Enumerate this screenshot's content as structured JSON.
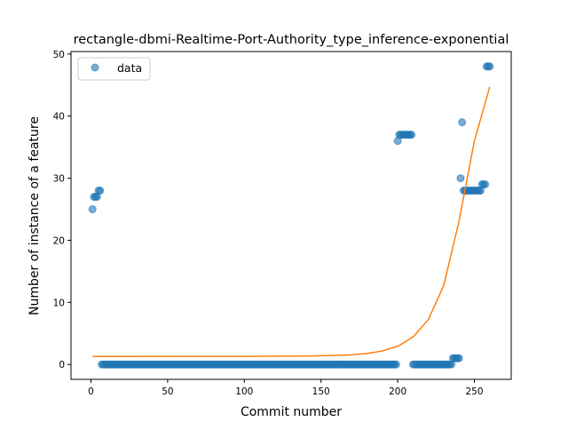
{
  "chart_data": {
    "type": "scatter",
    "title": "rectangle-dbmi-Realtime-Port-Authority_type_inference-exponential",
    "xlabel": "Commit number",
    "ylabel": "Number of instance of a feature",
    "xlim": [
      -13,
      274
    ],
    "ylim": [
      -2.4,
      50.4
    ],
    "xticks": [
      0,
      50,
      100,
      150,
      200,
      250
    ],
    "yticks": [
      0,
      10,
      20,
      30,
      40,
      50
    ],
    "grid": false,
    "legend": {
      "placement": "upper-left",
      "entries": [
        "data"
      ]
    },
    "colors": {
      "data": "#1f77b4",
      "fit": "#ff7f0e"
    },
    "series": [
      {
        "name": "data",
        "kind": "points",
        "points": [
          [
            1,
            25
          ],
          [
            2,
            27
          ],
          [
            3,
            27
          ],
          [
            4,
            27
          ],
          [
            5,
            28
          ],
          [
            6,
            28
          ],
          [
            7,
            0
          ],
          [
            8,
            0
          ],
          [
            9,
            0
          ],
          [
            10,
            0
          ],
          [
            11,
            0
          ],
          [
            12,
            0
          ],
          [
            13,
            0
          ],
          [
            14,
            0
          ],
          [
            15,
            0
          ],
          [
            16,
            0
          ],
          [
            17,
            0
          ],
          [
            18,
            0
          ],
          [
            19,
            0
          ],
          [
            20,
            0
          ],
          [
            21,
            0
          ],
          [
            22,
            0
          ],
          [
            23,
            0
          ],
          [
            24,
            0
          ],
          [
            25,
            0
          ],
          [
            26,
            0
          ],
          [
            27,
            0
          ],
          [
            28,
            0
          ],
          [
            29,
            0
          ],
          [
            30,
            0
          ],
          [
            31,
            0
          ],
          [
            32,
            0
          ],
          [
            33,
            0
          ],
          [
            34,
            0
          ],
          [
            35,
            0
          ],
          [
            36,
            0
          ],
          [
            37,
            0
          ],
          [
            38,
            0
          ],
          [
            39,
            0
          ],
          [
            40,
            0
          ],
          [
            41,
            0
          ],
          [
            42,
            0
          ],
          [
            43,
            0
          ],
          [
            44,
            0
          ],
          [
            45,
            0
          ],
          [
            46,
            0
          ],
          [
            47,
            0
          ],
          [
            48,
            0
          ],
          [
            49,
            0
          ],
          [
            50,
            0
          ],
          [
            51,
            0
          ],
          [
            52,
            0
          ],
          [
            53,
            0
          ],
          [
            54,
            0
          ],
          [
            55,
            0
          ],
          [
            56,
            0
          ],
          [
            57,
            0
          ],
          [
            58,
            0
          ],
          [
            59,
            0
          ],
          [
            60,
            0
          ],
          [
            61,
            0
          ],
          [
            62,
            0
          ],
          [
            63,
            0
          ],
          [
            64,
            0
          ],
          [
            65,
            0
          ],
          [
            66,
            0
          ],
          [
            67,
            0
          ],
          [
            68,
            0
          ],
          [
            69,
            0
          ],
          [
            70,
            0
          ],
          [
            71,
            0
          ],
          [
            72,
            0
          ],
          [
            73,
            0
          ],
          [
            74,
            0
          ],
          [
            75,
            0
          ],
          [
            76,
            0
          ],
          [
            77,
            0
          ],
          [
            78,
            0
          ],
          [
            79,
            0
          ],
          [
            80,
            0
          ],
          [
            81,
            0
          ],
          [
            82,
            0
          ],
          [
            83,
            0
          ],
          [
            84,
            0
          ],
          [
            85,
            0
          ],
          [
            86,
            0
          ],
          [
            87,
            0
          ],
          [
            88,
            0
          ],
          [
            89,
            0
          ],
          [
            90,
            0
          ],
          [
            91,
            0
          ],
          [
            92,
            0
          ],
          [
            93,
            0
          ],
          [
            94,
            0
          ],
          [
            95,
            0
          ],
          [
            96,
            0
          ],
          [
            97,
            0
          ],
          [
            98,
            0
          ],
          [
            99,
            0
          ],
          [
            100,
            0
          ],
          [
            101,
            0
          ],
          [
            102,
            0
          ],
          [
            103,
            0
          ],
          [
            104,
            0
          ],
          [
            105,
            0
          ],
          [
            106,
            0
          ],
          [
            107,
            0
          ],
          [
            108,
            0
          ],
          [
            109,
            0
          ],
          [
            110,
            0
          ],
          [
            111,
            0
          ],
          [
            112,
            0
          ],
          [
            113,
            0
          ],
          [
            114,
            0
          ],
          [
            115,
            0
          ],
          [
            116,
            0
          ],
          [
            117,
            0
          ],
          [
            118,
            0
          ],
          [
            119,
            0
          ],
          [
            120,
            0
          ],
          [
            121,
            0
          ],
          [
            122,
            0
          ],
          [
            123,
            0
          ],
          [
            124,
            0
          ],
          [
            125,
            0
          ],
          [
            126,
            0
          ],
          [
            127,
            0
          ],
          [
            128,
            0
          ],
          [
            129,
            0
          ],
          [
            130,
            0
          ],
          [
            131,
            0
          ],
          [
            132,
            0
          ],
          [
            133,
            0
          ],
          [
            134,
            0
          ],
          [
            135,
            0
          ],
          [
            136,
            0
          ],
          [
            137,
            0
          ],
          [
            138,
            0
          ],
          [
            139,
            0
          ],
          [
            140,
            0
          ],
          [
            141,
            0
          ],
          [
            142,
            0
          ],
          [
            143,
            0
          ],
          [
            144,
            0
          ],
          [
            145,
            0
          ],
          [
            146,
            0
          ],
          [
            147,
            0
          ],
          [
            148,
            0
          ],
          [
            149,
            0
          ],
          [
            150,
            0
          ],
          [
            151,
            0
          ],
          [
            152,
            0
          ],
          [
            153,
            0
          ],
          [
            154,
            0
          ],
          [
            155,
            0
          ],
          [
            156,
            0
          ],
          [
            157,
            0
          ],
          [
            158,
            0
          ],
          [
            159,
            0
          ],
          [
            160,
            0
          ],
          [
            161,
            0
          ],
          [
            162,
            0
          ],
          [
            163,
            0
          ],
          [
            164,
            0
          ],
          [
            165,
            0
          ],
          [
            166,
            0
          ],
          [
            167,
            0
          ],
          [
            168,
            0
          ],
          [
            169,
            0
          ],
          [
            170,
            0
          ],
          [
            171,
            0
          ],
          [
            172,
            0
          ],
          [
            173,
            0
          ],
          [
            174,
            0
          ],
          [
            175,
            0
          ],
          [
            176,
            0
          ],
          [
            177,
            0
          ],
          [
            178,
            0
          ],
          [
            179,
            0
          ],
          [
            180,
            0
          ],
          [
            181,
            0
          ],
          [
            182,
            0
          ],
          [
            183,
            0
          ],
          [
            184,
            0
          ],
          [
            185,
            0
          ],
          [
            186,
            0
          ],
          [
            187,
            0
          ],
          [
            188,
            0
          ],
          [
            189,
            0
          ],
          [
            190,
            0
          ],
          [
            191,
            0
          ],
          [
            192,
            0
          ],
          [
            193,
            0
          ],
          [
            194,
            0
          ],
          [
            195,
            0
          ],
          [
            196,
            0
          ],
          [
            197,
            0
          ],
          [
            198,
            0
          ],
          [
            199,
            0
          ],
          [
            200,
            36
          ],
          [
            201,
            37
          ],
          [
            202,
            37
          ],
          [
            203,
            37
          ],
          [
            204,
            37
          ],
          [
            205,
            37
          ],
          [
            206,
            37
          ],
          [
            207,
            37
          ],
          [
            208,
            37
          ],
          [
            209,
            37
          ],
          [
            210,
            0
          ],
          [
            211,
            0
          ],
          [
            212,
            0
          ],
          [
            213,
            0
          ],
          [
            214,
            0
          ],
          [
            215,
            0
          ],
          [
            216,
            0
          ],
          [
            217,
            0
          ],
          [
            218,
            0
          ],
          [
            219,
            0
          ],
          [
            220,
            0
          ],
          [
            221,
            0
          ],
          [
            222,
            0
          ],
          [
            223,
            0
          ],
          [
            224,
            0
          ],
          [
            225,
            0
          ],
          [
            226,
            0
          ],
          [
            227,
            0
          ],
          [
            228,
            0
          ],
          [
            229,
            0
          ],
          [
            230,
            0
          ],
          [
            231,
            0
          ],
          [
            232,
            0
          ],
          [
            233,
            0
          ],
          [
            234,
            0
          ],
          [
            235,
            0
          ],
          [
            236,
            1
          ],
          [
            237,
            1
          ],
          [
            238,
            1
          ],
          [
            239,
            1
          ],
          [
            240,
            1
          ],
          [
            241,
            30
          ],
          [
            242,
            39
          ],
          [
            243,
            28
          ],
          [
            244,
            28
          ],
          [
            245,
            28
          ],
          [
            246,
            28
          ],
          [
            247,
            28
          ],
          [
            248,
            28
          ],
          [
            249,
            28
          ],
          [
            250,
            28
          ],
          [
            251,
            28
          ],
          [
            252,
            28
          ],
          [
            253,
            28
          ],
          [
            254,
            28
          ],
          [
            255,
            29
          ],
          [
            256,
            29
          ],
          [
            257,
            29
          ],
          [
            258,
            48
          ],
          [
            259,
            48
          ],
          [
            260,
            48
          ]
        ]
      },
      {
        "name": "",
        "kind": "line",
        "points": [
          [
            1,
            1.29
          ],
          [
            50,
            1.3
          ],
          [
            100,
            1.31
          ],
          [
            140,
            1.36
          ],
          [
            160,
            1.46
          ],
          [
            170,
            1.56
          ],
          [
            180,
            1.77
          ],
          [
            190,
            2.17
          ],
          [
            200,
            2.93
          ],
          [
            210,
            4.41
          ],
          [
            220,
            7.24
          ],
          [
            230,
            12.7
          ],
          [
            240,
            23.1
          ],
          [
            250,
            36.0
          ],
          [
            260,
            44.7
          ]
        ]
      }
    ]
  }
}
